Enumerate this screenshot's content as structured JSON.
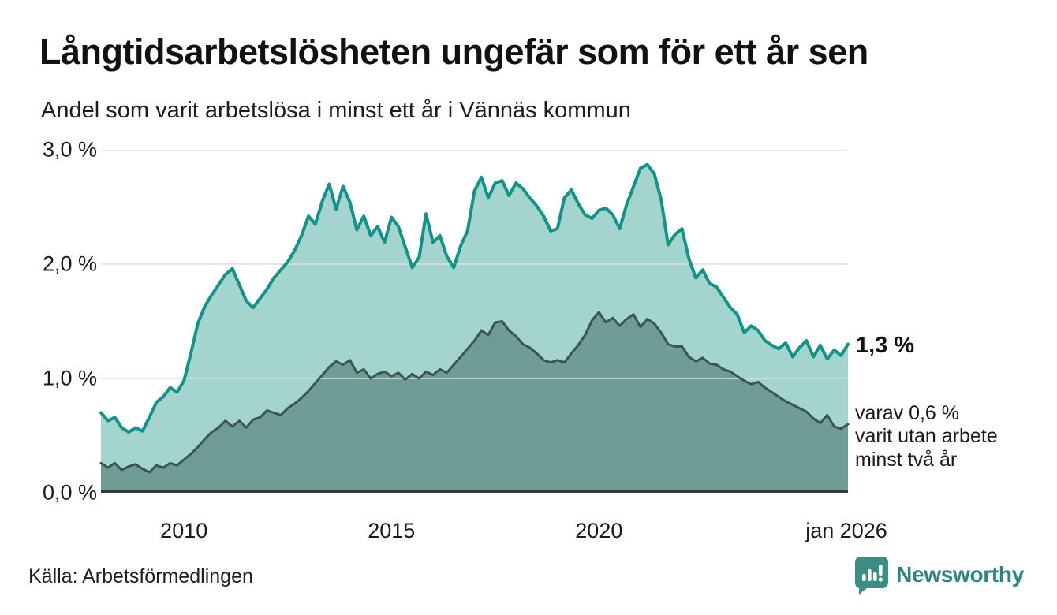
{
  "header": {
    "title": "Långtidsarbetslösheten ungefär som för ett år sen",
    "subtitle": "Andel som varit arbetslösa i minst ett år i Vännäs kommun"
  },
  "footer": {
    "source": "Källa: Arbetsförmedlingen",
    "brand": "Newsworthy",
    "brand_color": "#2f857c",
    "brand_icon_color": "#3c8e85"
  },
  "chart_data": {
    "type": "area",
    "title": "Långtidsarbetslösheten ungefär som för ett år sen",
    "subtitle": "Andel som varit arbetslösa i minst ett år i Vännäs kommun",
    "unit": "%",
    "x_start_year": 2008,
    "x_end_year": 2026,
    "points_per_year": 6,
    "ylim": [
      0,
      3
    ],
    "grid_on": true,
    "grid_color": "#e0e0e0",
    "axis_color": "#3a3a3a",
    "yticks": [
      {
        "value": 0,
        "label": "0,0 %"
      },
      {
        "value": 1,
        "label": "1,0 %"
      },
      {
        "value": 2,
        "label": "2,0 %"
      },
      {
        "value": 3,
        "label": "3,0 %"
      }
    ],
    "xticks": [
      {
        "year": 2010,
        "label": "2010"
      },
      {
        "year": 2015,
        "label": "2015"
      },
      {
        "year": 2020,
        "label": "2020"
      },
      {
        "year": 2026,
        "label": "jan 2026"
      }
    ],
    "series": [
      {
        "name": "arbetslösa minst ett år",
        "line_color": "#12938a",
        "fill_color": "#a3d5ce",
        "line_width": 4,
        "end_value_label": "1,3 %",
        "values": [
          0.7,
          0.63,
          0.66,
          0.57,
          0.53,
          0.57,
          0.54,
          0.66,
          0.79,
          0.84,
          0.92,
          0.88,
          0.98,
          1.22,
          1.48,
          1.63,
          1.73,
          1.82,
          1.91,
          1.96,
          1.82,
          1.68,
          1.62,
          1.7,
          1.78,
          1.88,
          1.95,
          2.02,
          2.12,
          2.25,
          2.42,
          2.35,
          2.55,
          2.7,
          2.48,
          2.68,
          2.54,
          2.3,
          2.42,
          2.25,
          2.33,
          2.19,
          2.41,
          2.33,
          2.15,
          1.97,
          2.06,
          2.44,
          2.19,
          2.25,
          2.07,
          1.97,
          2.16,
          2.29,
          2.64,
          2.76,
          2.58,
          2.71,
          2.73,
          2.6,
          2.71,
          2.66,
          2.58,
          2.51,
          2.42,
          2.29,
          2.31,
          2.58,
          2.65,
          2.53,
          2.43,
          2.4,
          2.47,
          2.49,
          2.43,
          2.31,
          2.52,
          2.68,
          2.84,
          2.87,
          2.79,
          2.56,
          2.17,
          2.26,
          2.31,
          2.05,
          1.88,
          1.95,
          1.83,
          1.8,
          1.71,
          1.62,
          1.56,
          1.4,
          1.46,
          1.42,
          1.33,
          1.29,
          1.26,
          1.31,
          1.19,
          1.27,
          1.33,
          1.19,
          1.29,
          1.17,
          1.25,
          1.2,
          1.3
        ]
      },
      {
        "name": "arbetslösa minst två år",
        "line_color": "#3a564f",
        "fill_color": "#6f9c95",
        "line_width": 3,
        "end_value_label_lines": [
          "varav 0,6 %",
          "varit utan arbete",
          "minst två år"
        ],
        "values": [
          0.26,
          0.22,
          0.26,
          0.2,
          0.23,
          0.25,
          0.21,
          0.18,
          0.24,
          0.22,
          0.26,
          0.24,
          0.29,
          0.34,
          0.4,
          0.47,
          0.53,
          0.57,
          0.63,
          0.58,
          0.63,
          0.57,
          0.64,
          0.66,
          0.72,
          0.7,
          0.68,
          0.74,
          0.78,
          0.83,
          0.89,
          0.96,
          1.03,
          1.1,
          1.15,
          1.12,
          1.16,
          1.05,
          1.08,
          1.0,
          1.04,
          1.06,
          1.02,
          1.05,
          0.99,
          1.04,
          1.0,
          1.06,
          1.03,
          1.08,
          1.05,
          1.12,
          1.19,
          1.26,
          1.33,
          1.42,
          1.38,
          1.49,
          1.5,
          1.42,
          1.37,
          1.3,
          1.27,
          1.22,
          1.16,
          1.14,
          1.16,
          1.14,
          1.22,
          1.29,
          1.38,
          1.51,
          1.58,
          1.49,
          1.53,
          1.46,
          1.52,
          1.56,
          1.45,
          1.52,
          1.48,
          1.4,
          1.3,
          1.28,
          1.28,
          1.19,
          1.15,
          1.18,
          1.13,
          1.12,
          1.08,
          1.06,
          1.02,
          0.98,
          0.95,
          0.97,
          0.92,
          0.88,
          0.84,
          0.8,
          0.77,
          0.74,
          0.71,
          0.65,
          0.61,
          0.68,
          0.58,
          0.56,
          0.6
        ]
      }
    ]
  }
}
